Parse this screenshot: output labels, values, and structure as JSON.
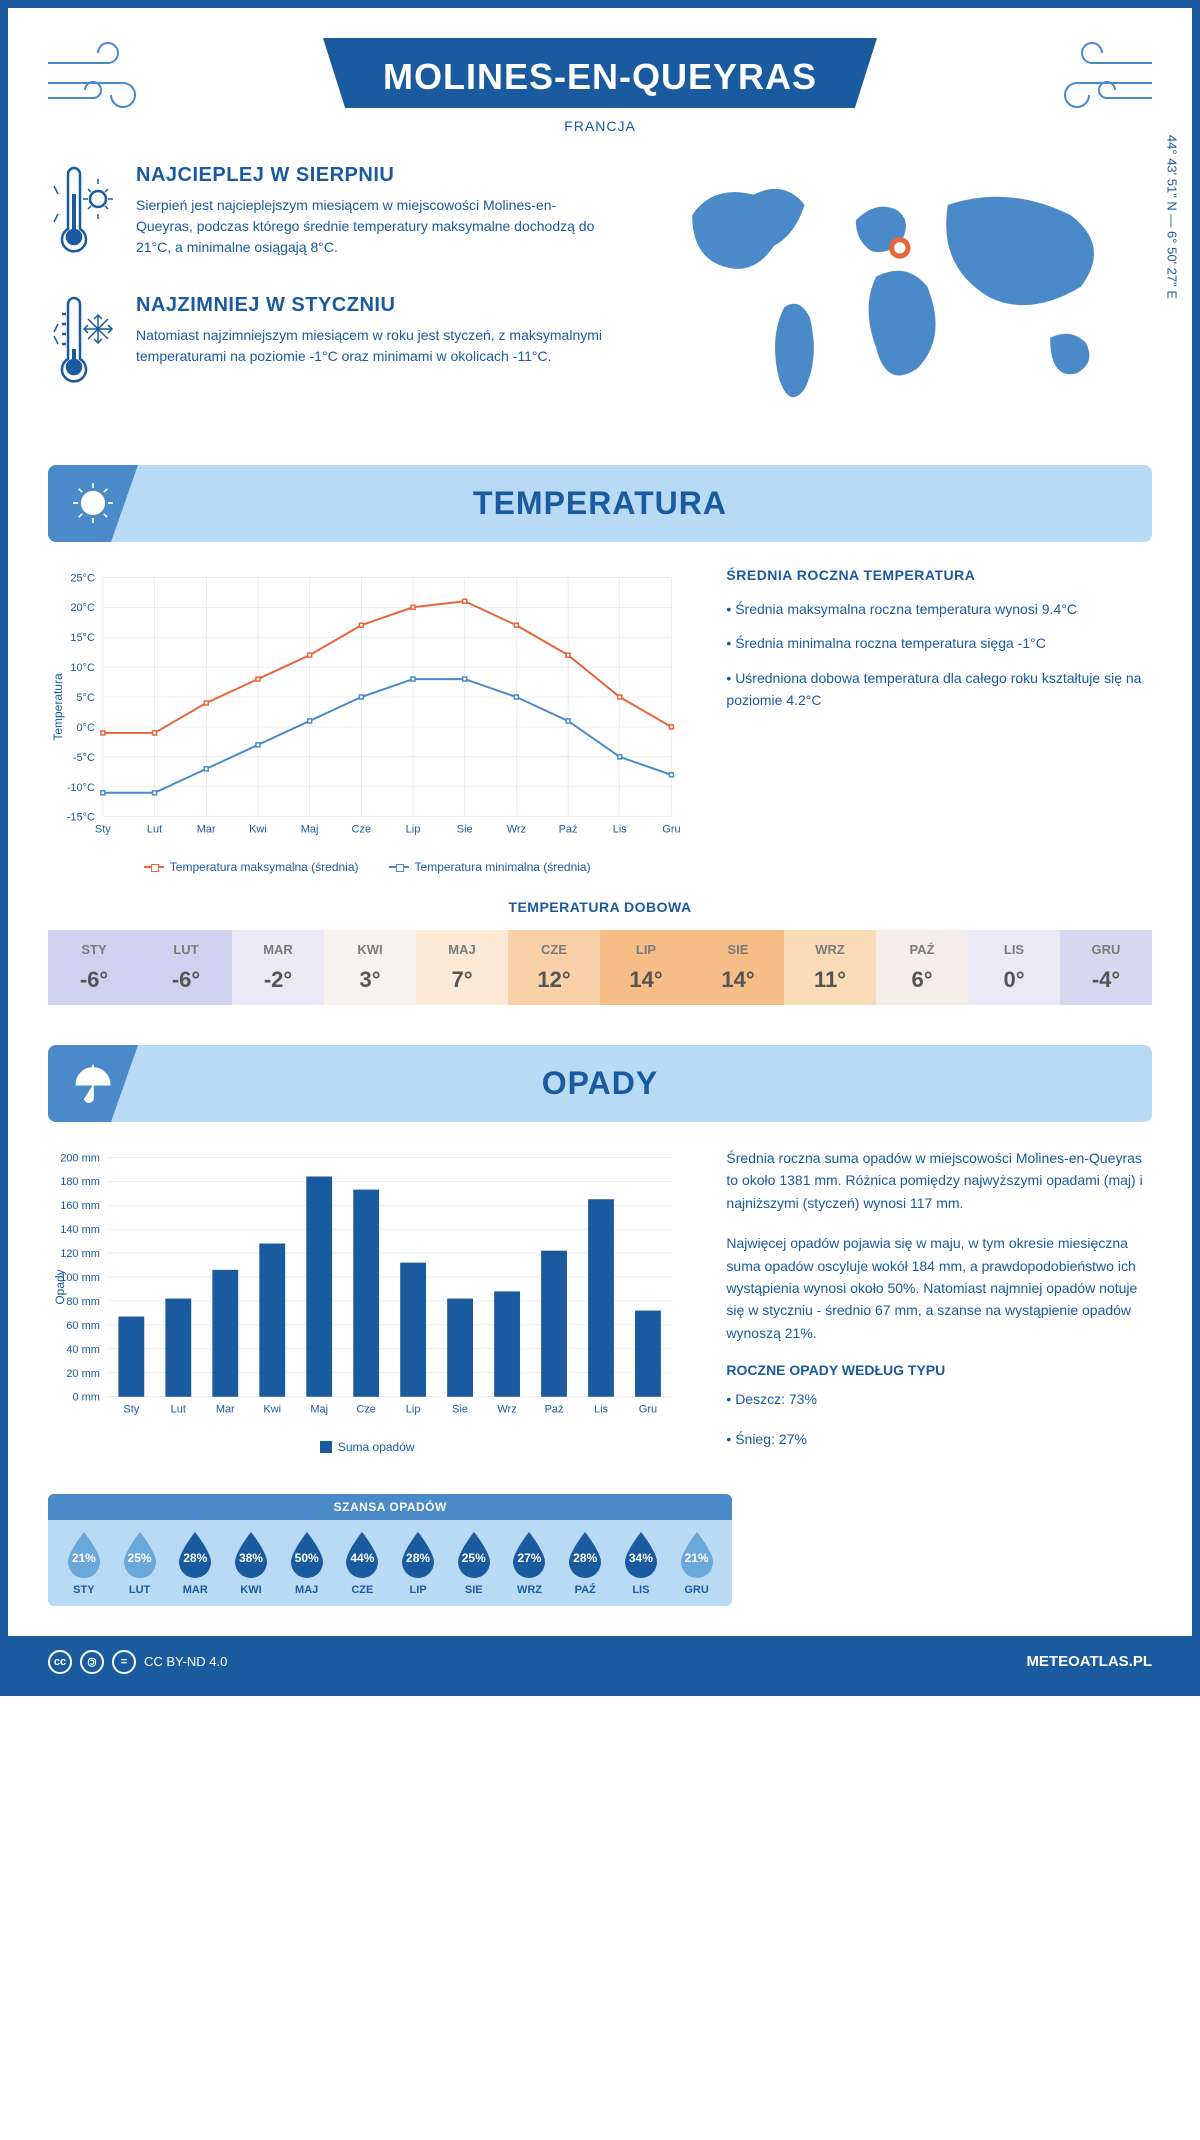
{
  "page": {
    "primary_color": "#1a5a9e",
    "accent_color": "#4a8ac9",
    "panel_color": "#b8daf5",
    "bg_color": "#ffffff",
    "title": "MOLINES-EN-QUEYRAS",
    "subtitle": "FRANCJA",
    "coords": "44° 43' 51\" N — 6° 50' 27\" E"
  },
  "warm_block": {
    "title": "NAJCIEPLEJ W SIERPNIU",
    "text": "Sierpień jest najcieplejszym miesiącem w miejscowości Molines-en-Queyras, podczas którego średnie temperatury maksymalne dochodzą do 21°C, a minimalne osiągają 8°C."
  },
  "cold_block": {
    "title": "NAJZIMNIEJ W STYCZNIU",
    "text": "Natomiast najzimniejszym miesiącem w roku jest styczeń, z maksymalnymi temperaturami na poziomie -1°C oraz minimami w okolicach -11°C."
  },
  "temp_section": {
    "title": "TEMPERATURA",
    "info_title": "ŚREDNIA ROCZNA TEMPERATURA",
    "bullets": [
      "• Średnia maksymalna roczna temperatura wynosi 9.4°C",
      "• Średnia minimalna roczna temperatura sięga -1°C",
      "• Uśredniona dobowa temperatura dla całego roku kształtuje się na poziomie 4.2°C"
    ]
  },
  "temp_chart": {
    "type": "line",
    "months": [
      "Sty",
      "Lut",
      "Mar",
      "Kwi",
      "Maj",
      "Cze",
      "Lip",
      "Sie",
      "Wrz",
      "Paź",
      "Lis",
      "Gru"
    ],
    "max_series": [
      -1,
      -1,
      4,
      8,
      12,
      17,
      20,
      21,
      17,
      12,
      5,
      0
    ],
    "min_series": [
      -11,
      -11,
      -7,
      -3,
      1,
      5,
      8,
      8,
      5,
      1,
      -5,
      -8
    ],
    "max_color": "#e8653a",
    "min_color": "#4a8ac9",
    "ylim": [
      -15,
      25
    ],
    "ytick_step": 5,
    "ylabel": "Temperatura",
    "grid_color": "#dddddd",
    "line_width": 2,
    "marker_size": 4,
    "legend_max": "Temperatura maksymalna (średnia)",
    "legend_min": "Temperatura minimalna (średnia)"
  },
  "daily_temp": {
    "title": "TEMPERATURA DOBOWA",
    "months": [
      "STY",
      "LUT",
      "MAR",
      "KWI",
      "MAJ",
      "CZE",
      "LIP",
      "SIE",
      "WRZ",
      "PAŹ",
      "LIS",
      "GRU"
    ],
    "values": [
      "-6°",
      "-6°",
      "-2°",
      "3°",
      "7°",
      "12°",
      "14°",
      "14°",
      "11°",
      "6°",
      "0°",
      "-4°"
    ],
    "cell_colors": [
      "#cfd2ee",
      "#cfd2ee",
      "#ece9f6",
      "#f7f3f0",
      "#fce9d6",
      "#f9d0a8",
      "#f6bd86",
      "#f6bd86",
      "#fadbb8",
      "#f5efe9",
      "#ece9f6",
      "#d7d8f0"
    ],
    "head_text_color": "#7b7b7b",
    "val_text_color": "#555555"
  },
  "precip_section": {
    "title": "OPADY",
    "para1": "Średnia roczna suma opadów w miejscowości Molines-en-Queyras to około 1381 mm. Różnica pomiędzy najwyższymi opadami (maj) i najniższymi (styczeń) wynosi 117 mm.",
    "para2": "Najwięcej opadów pojawia się w maju, w tym okresie miesięczna suma opadów oscyluje wokół 184 mm, a prawdopodobieństwo ich wystąpienia wynosi około 50%. Natomiast najmniej opadów notuje się w styczniu - średnio 67 mm, a szanse na wystąpienie opadów wynoszą 21%.",
    "type_title": "ROCZNE OPADY WEDŁUG TYPU",
    "type_bullets": [
      "• Deszcz: 73%",
      "• Śnieg: 27%"
    ]
  },
  "precip_chart": {
    "type": "bar",
    "months": [
      "Sty",
      "Lut",
      "Mar",
      "Kwi",
      "Maj",
      "Cze",
      "Lip",
      "Sie",
      "Wrz",
      "Paź",
      "Lis",
      "Gru"
    ],
    "values": [
      67,
      82,
      106,
      128,
      184,
      173,
      112,
      82,
      88,
      122,
      165,
      72
    ],
    "bar_color": "#1a5a9e",
    "ylim": [
      0,
      200
    ],
    "ytick_step": 20,
    "ylabel": "Opady",
    "grid_color": "#dddddd",
    "bar_width": 0.55,
    "legend": "Suma opadów"
  },
  "precip_chance": {
    "title": "SZANSA OPADÓW",
    "months": [
      "STY",
      "LUT",
      "MAR",
      "KWI",
      "MAJ",
      "CZE",
      "LIP",
      "SIE",
      "WRZ",
      "PAŹ",
      "LIS",
      "GRU"
    ],
    "values": [
      "21%",
      "25%",
      "28%",
      "38%",
      "50%",
      "44%",
      "28%",
      "25%",
      "27%",
      "28%",
      "34%",
      "21%"
    ],
    "drop_colors": [
      "#6aa8dc",
      "#6aa8dc",
      "#1a5a9e",
      "#1a5a9e",
      "#1a5a9e",
      "#1a5a9e",
      "#1a5a9e",
      "#1a5a9e",
      "#1a5a9e",
      "#1a5a9e",
      "#1a5a9e",
      "#6aa8dc"
    ]
  },
  "footer": {
    "license": "CC BY-ND 4.0",
    "site": "METEOATLAS.PL"
  }
}
